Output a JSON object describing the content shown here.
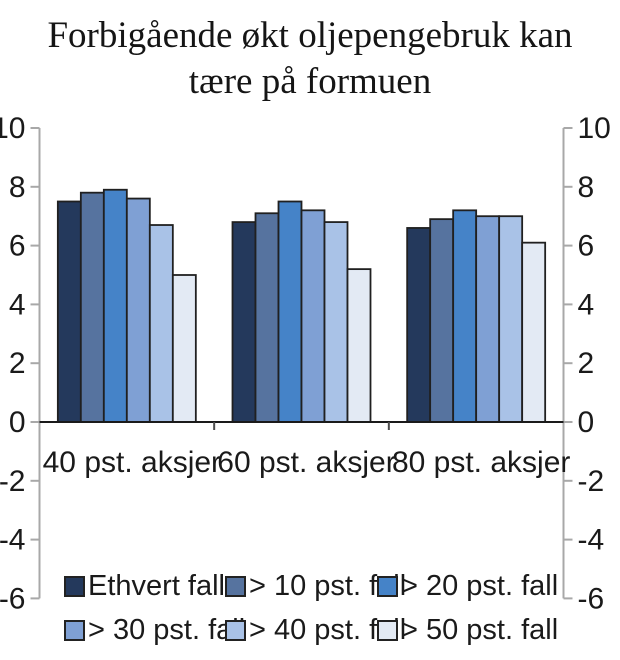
{
  "title": {
    "line1": "Forbigående økt oljepengebruk kan",
    "line2": "tære på formuen"
  },
  "chart_data": {
    "type": "bar",
    "title": "Forbigående økt oljepengebruk kan tære på formuen",
    "categories": [
      "40 pst. aksjer",
      "60 pst. aksjer",
      "80 pst. aksjer"
    ],
    "series": [
      {
        "name": "Ethvert fall",
        "color": "#24395C",
        "values": [
          7.5,
          6.8,
          6.6
        ]
      },
      {
        "name": "> 10 pst. fall",
        "color": "#56739F",
        "values": [
          7.8,
          7.1,
          6.9
        ]
      },
      {
        "name": "> 20 pst. fall",
        "color": "#4583C8",
        "values": [
          7.9,
          7.5,
          7.2
        ]
      },
      {
        "name": "> 30 pst. fall",
        "color": "#7FA0D4",
        "values": [
          7.6,
          7.2,
          7.0
        ]
      },
      {
        "name": "> 40 pst. fall",
        "color": "#A9C2E7",
        "values": [
          6.7,
          6.8,
          7.0
        ]
      },
      {
        "name": "> 50 pst. fall",
        "color": "#E3EAF4",
        "values": [
          5.0,
          5.2,
          6.1
        ]
      }
    ],
    "xlabel": "",
    "ylabel": "",
    "ylim": [
      -6,
      10
    ],
    "yticks": [
      10,
      8,
      6,
      4,
      2,
      0,
      -2,
      -4,
      -6
    ],
    "ytick_labels_both_sides": true,
    "grid": false,
    "legend_position": "bottom",
    "bar_border_color": "#202020",
    "axis_color": "#a8a8a8",
    "baseline_color": "#1a1a1a",
    "text_color": "#1a1a1a"
  }
}
